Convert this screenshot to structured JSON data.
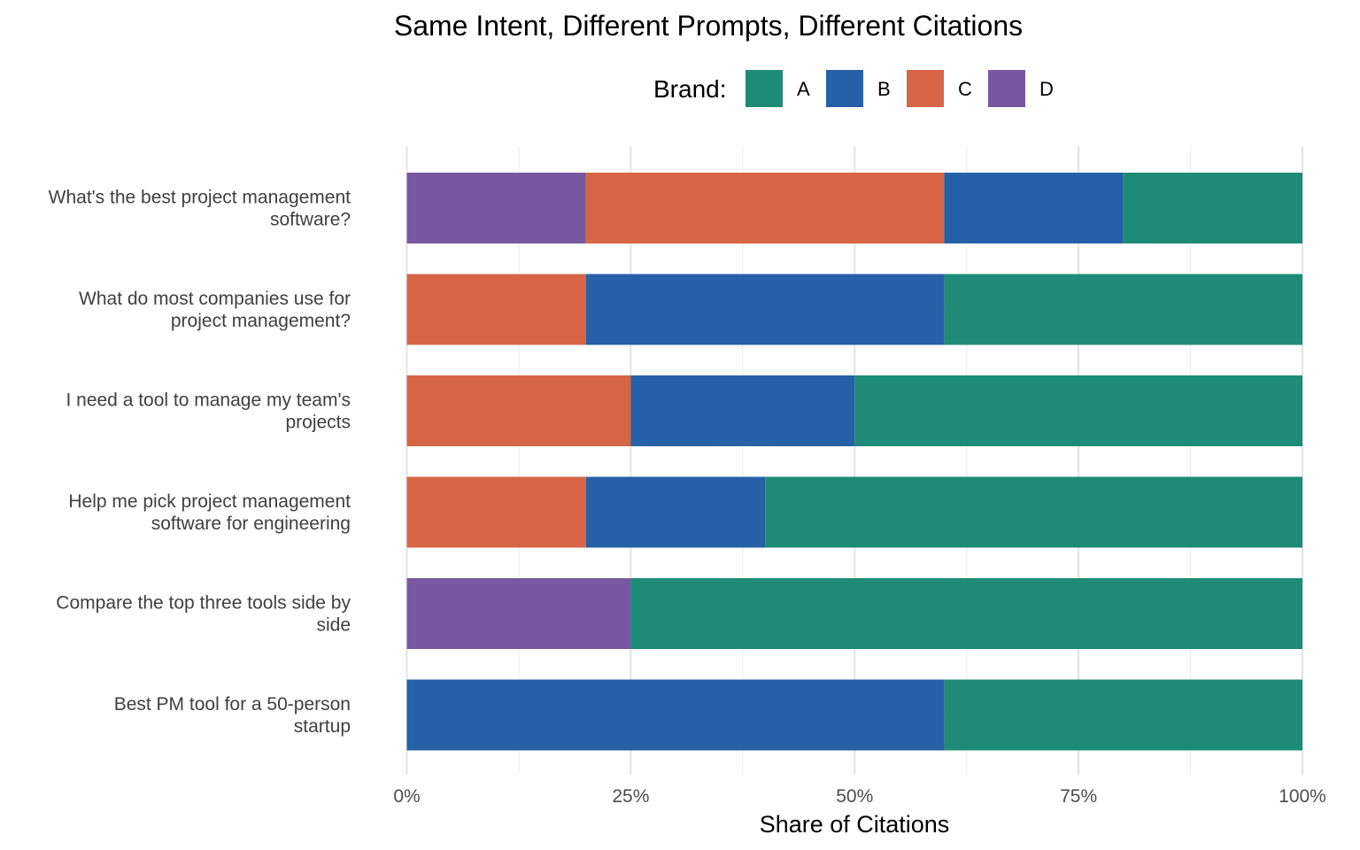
{
  "chart_data": {
    "type": "bar",
    "orientation": "horizontal",
    "stacked": true,
    "title": "Same Intent, Different Prompts, Different Citations",
    "xlabel": "Share of Citations",
    "ylabel": "",
    "xlim": [
      0,
      1
    ],
    "x_ticks": [
      {
        "value": 0,
        "label": "0%"
      },
      {
        "value": 0.25,
        "label": "25%"
      },
      {
        "value": 0.5,
        "label": "50%"
      },
      {
        "value": 0.75,
        "label": "75%"
      },
      {
        "value": 1,
        "label": "100%"
      }
    ],
    "legend": {
      "title": "Brand:",
      "position": "top",
      "items": [
        {
          "name": "A",
          "color": "#1e8b76"
        },
        {
          "name": "B",
          "color": "#2661a7"
        },
        {
          "name": "C",
          "color": "#d66545"
        },
        {
          "name": "D",
          "color": "#7858a0"
        }
      ]
    },
    "stack_order": [
      "D",
      "C",
      "B",
      "A"
    ],
    "categories": [
      {
        "lines": [
          "What's the best project management",
          "software?"
        ]
      },
      {
        "lines": [
          "What do most companies use for",
          "project management?"
        ]
      },
      {
        "lines": [
          "I need a tool to manage my team's",
          "projects"
        ]
      },
      {
        "lines": [
          "Help me pick project management",
          "software for engineering"
        ]
      },
      {
        "lines": [
          "Compare the top three tools side by",
          "side"
        ]
      },
      {
        "lines": [
          "Best PM tool for a 50-person",
          "startup"
        ]
      }
    ],
    "series": [
      {
        "name": "A",
        "color": "#1e8b76",
        "values": [
          0.2,
          0.4,
          0.5,
          0.6,
          0.75,
          0.4
        ]
      },
      {
        "name": "B",
        "color": "#2661a7",
        "values": [
          0.2,
          0.4,
          0.25,
          0.2,
          0.0,
          0.6
        ]
      },
      {
        "name": "C",
        "color": "#d66545",
        "values": [
          0.4,
          0.2,
          0.25,
          0.2,
          0.0,
          0.0
        ]
      },
      {
        "name": "D",
        "color": "#7858a0",
        "values": [
          0.2,
          0.0,
          0.0,
          0.0,
          0.25,
          0.0
        ]
      }
    ]
  }
}
